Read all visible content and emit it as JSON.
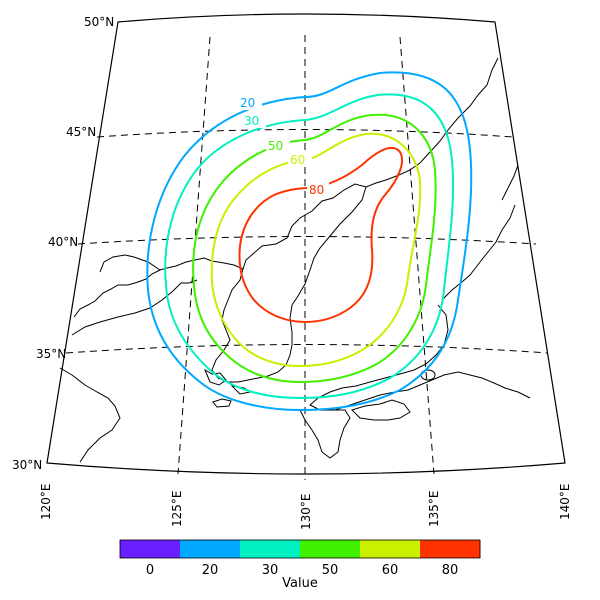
{
  "lat_labels": [
    {
      "text": "50°N"
    },
    {
      "text": "45°N"
    },
    {
      "text": "40°N"
    },
    {
      "text": "35°N"
    },
    {
      "text": "30°N"
    }
  ],
  "lon_labels": [
    {
      "text": "120°E"
    },
    {
      "text": "125°E"
    },
    {
      "text": "130°E"
    },
    {
      "text": "135°E"
    },
    {
      "text": "140°E"
    }
  ],
  "contours": [
    {
      "level": 20,
      "label": "20",
      "color": "#00a8ff"
    },
    {
      "level": 30,
      "label": "30",
      "color": "#00f0c0"
    },
    {
      "level": 50,
      "label": "50",
      "color": "#40f000"
    },
    {
      "level": 60,
      "label": "60",
      "color": "#c8f000"
    },
    {
      "level": 80,
      "label": "80",
      "color": "#ff3300"
    }
  ],
  "colorbar": {
    "label": "Value",
    "colors": [
      "#6a1fff",
      "#00a8ff",
      "#00f0c0",
      "#40f000",
      "#c8f000",
      "#ff3300"
    ],
    "ticks": [
      "0",
      "20",
      "30",
      "50",
      "60",
      "80"
    ]
  }
}
